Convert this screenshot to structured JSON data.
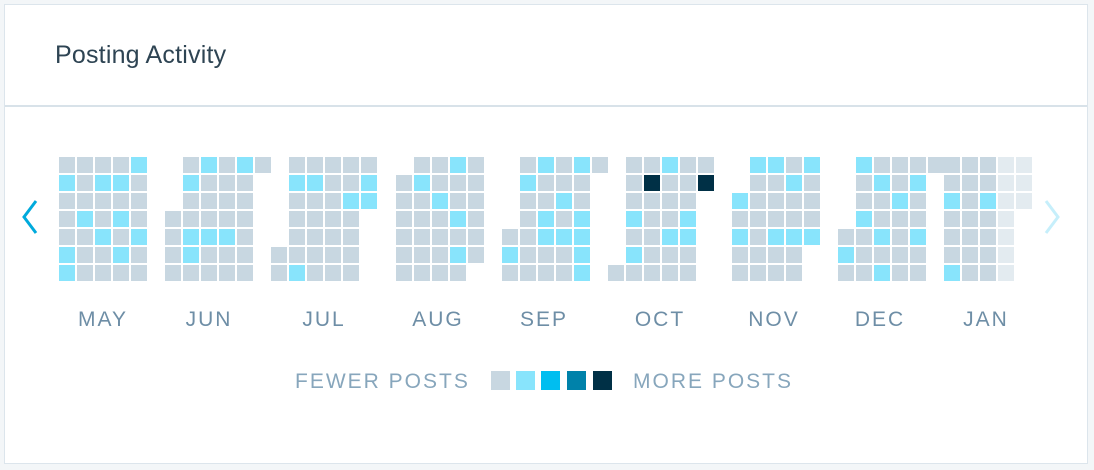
{
  "card": {
    "title": "Posting Activity"
  },
  "nav": {
    "prev_icon": "chevron-left-icon",
    "next_icon": "chevron-right-icon"
  },
  "colors": {
    "level0": "#c8d7e1",
    "level1": "#88e4fc",
    "level2": "#00bef0",
    "level3": "#0082aa",
    "level4": "#003046",
    "future": "#e3ebf0",
    "arrow_active": "#00aadc",
    "arrow_disabled": "#c6effb",
    "month_label": "#6e8ea6"
  },
  "legend": {
    "fewer_label": "FEWER POSTS",
    "more_label": "MORE POSTS",
    "levels": [
      0,
      1,
      2,
      3,
      4
    ]
  },
  "chart_data": {
    "type": "heatmap",
    "title": "Posting Activity",
    "rows": "day of week (Sun–Sat)",
    "months": [
      {
        "label": "MAY",
        "start_weekday": 0,
        "levels": [
          0,
          1,
          0,
          0,
          0,
          1,
          1,
          0,
          0,
          0,
          1,
          0,
          0,
          0,
          0,
          1,
          0,
          0,
          1,
          0,
          0,
          0,
          1,
          0,
          1,
          0,
          1,
          0,
          1,
          0,
          0,
          0,
          1,
          0,
          0
        ]
      },
      {
        "label": "JUN",
        "start_weekday": 3,
        "levels": [
          0,
          0,
          0,
          0,
          0,
          1,
          0,
          0,
          1,
          1,
          0,
          1,
          0,
          0,
          0,
          1,
          0,
          0,
          0,
          0,
          0,
          0,
          1,
          0,
          0,
          1,
          0,
          0,
          0,
          0,
          0,
          0,
          0
        ]
      },
      {
        "label": "JUL",
        "start_weekday": 5,
        "levels": [
          0,
          0,
          0,
          1,
          0,
          0,
          0,
          0,
          1,
          0,
          1,
          0,
          0,
          0,
          0,
          0,
          0,
          0,
          0,
          0,
          0,
          0,
          0,
          0,
          0,
          1,
          0,
          0,
          0,
          0,
          0,
          1,
          1
        ]
      },
      {
        "label": "AUG",
        "start_weekday": 1,
        "levels": [
          0,
          0,
          0,
          0,
          0,
          0,
          0,
          1,
          0,
          0,
          0,
          0,
          0,
          0,
          0,
          1,
          0,
          0,
          0,
          0,
          1,
          0,
          0,
          1,
          0,
          1,
          0,
          0,
          0,
          0,
          0,
          0,
          0
        ]
      },
      {
        "label": "SEP",
        "start_weekday": 4,
        "levels": [
          0,
          1,
          0,
          0,
          1,
          0,
          0,
          0,
          0,
          0,
          1,
          0,
          0,
          1,
          1,
          0,
          0,
          0,
          0,
          1,
          0,
          1,
          0,
          0,
          1,
          0,
          0,
          1,
          1,
          1,
          1,
          0
        ]
      },
      {
        "label": "OCT",
        "start_weekday": 6,
        "levels": [
          0,
          0,
          0,
          0,
          1,
          0,
          1,
          0,
          0,
          4,
          0,
          0,
          0,
          0,
          0,
          1,
          0,
          0,
          0,
          1,
          0,
          0,
          0,
          0,
          0,
          1,
          1,
          0,
          0,
          0,
          4
        ]
      },
      {
        "label": "NOV",
        "start_weekday": 2,
        "levels": [
          1,
          0,
          1,
          0,
          0,
          1,
          0,
          0,
          0,
          0,
          0,
          0,
          1,
          0,
          0,
          0,
          1,
          0,
          0,
          0,
          1,
          0,
          0,
          1,
          0,
          0,
          1,
          0,
          0,
          0,
          1
        ]
      },
      {
        "label": "DEC",
        "start_weekday": 4,
        "levels": [
          0,
          1,
          0,
          1,
          0,
          0,
          1,
          0,
          0,
          0,
          0,
          1,
          0,
          0,
          1,
          0,
          1,
          0,
          0,
          1,
          0,
          0,
          0,
          0,
          0,
          1,
          0,
          0,
          1,
          0,
          0,
          0
        ]
      },
      {
        "label": "JAN",
        "start_weekday": 0,
        "levels": [
          0,
          0,
          1,
          0,
          0,
          0,
          1,
          0,
          0,
          0,
          0,
          0,
          0,
          0,
          0,
          0,
          1,
          0,
          0,
          0,
          0
        ]
      }
    ]
  }
}
